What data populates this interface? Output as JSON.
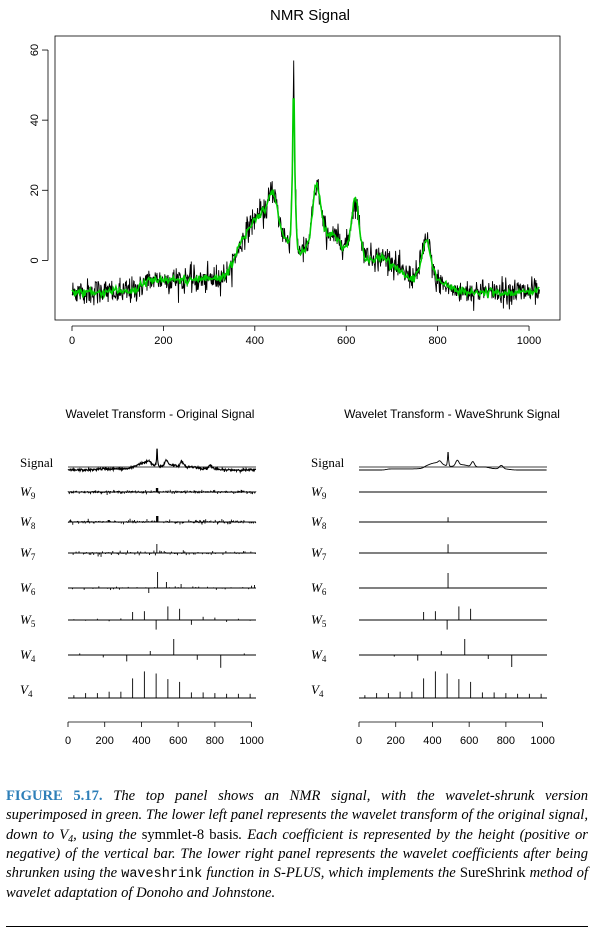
{
  "colors": {
    "signal": "#000000",
    "shrunk": "#00cc00",
    "caption_label": "#2e7fb8"
  },
  "top_panel": {
    "title": "NMR Signal",
    "x_ticks": [
      "0",
      "200",
      "400",
      "600",
      "800",
      "1000"
    ],
    "y_ticks": [
      "0",
      "20",
      "40",
      "60"
    ]
  },
  "lower_left": {
    "title": "Wavelet Transform - Original Signal",
    "row_labels": [
      "Signal",
      "W",
      "W",
      "W",
      "W",
      "W",
      "W",
      "V"
    ],
    "row_subscripts": [
      "",
      "9",
      "8",
      "7",
      "6",
      "5",
      "4",
      "4"
    ],
    "x_ticks": [
      "0",
      "200",
      "400",
      "600",
      "800",
      "1000"
    ]
  },
  "lower_right": {
    "title": "Wavelet Transform - WaveShrunk Signal",
    "row_labels": [
      "Signal",
      "W",
      "W",
      "W",
      "W",
      "W",
      "W",
      "V"
    ],
    "row_subscripts": [
      "",
      "9",
      "8",
      "7",
      "6",
      "5",
      "4",
      "4"
    ],
    "x_ticks": [
      "0",
      "200",
      "400",
      "600",
      "800",
      "1000"
    ]
  },
  "chart_data": [
    {
      "type": "line",
      "title": "NMR Signal",
      "xlabel": "",
      "ylabel": "",
      "xlim": [
        0,
        1024
      ],
      "ylim": [
        -17,
        64
      ],
      "series": [
        {
          "name": "NMR signal",
          "color": "#000000",
          "description": "noisy NMR spectrum, baseline near -9, peaks near x=430 (~30), x=485 (~57), x=535 (~25), x=620 (~22), x=775 (~7)"
        },
        {
          "name": "wavelet-shrunk version",
          "color": "#00cc00",
          "description": "smoothed estimate following the same peaks"
        }
      ],
      "peaks": [
        {
          "x": 430,
          "y": 30
        },
        {
          "x": 485,
          "y": 57
        },
        {
          "x": 535,
          "y": 25
        },
        {
          "x": 620,
          "y": 22
        },
        {
          "x": 775,
          "y": 7
        }
      ],
      "baseline": -9
    },
    {
      "type": "bar",
      "title": "Wavelet Transform - Original Signal",
      "rows": [
        "Signal",
        "W9",
        "W8",
        "W7",
        "W6",
        "W5",
        "W4",
        "V4"
      ],
      "xlim": [
        0,
        1024
      ],
      "V4": {
        "x": [
          32,
          96,
          160,
          224,
          288,
          352,
          416,
          480,
          544,
          608,
          672,
          736,
          800,
          864,
          928,
          992
        ],
        "h": [
          -0.7,
          -0.55,
          -0.55,
          -0.45,
          -0.45,
          0.5,
          1.0,
          0.85,
          0.45,
          0.25,
          -0.5,
          -0.5,
          -0.55,
          -0.6,
          -0.6,
          -0.6
        ]
      },
      "W4": {
        "x": [
          64,
          192,
          320,
          448,
          576,
          704,
          832,
          960
        ],
        "h": [
          0.1,
          -0.15,
          -0.4,
          0.25,
          1.0,
          -0.3,
          -0.8,
          0.1
        ]
      },
      "W5": {
        "x": [
          32,
          96,
          160,
          224,
          288,
          352,
          416,
          480,
          544,
          608,
          672,
          736,
          800,
          864,
          928,
          992
        ],
        "h": [
          0.05,
          -0.05,
          0.08,
          -0.08,
          0.1,
          0.5,
          0.55,
          -0.6,
          0.85,
          0.7,
          -0.3,
          0.2,
          0.15,
          -0.12,
          0.08,
          -0.05
        ]
      },
      "W6_spike": {
        "x": 485,
        "h": 0.8
      }
    },
    {
      "type": "bar",
      "title": "Wavelet Transform - WaveShrunk Signal",
      "rows": [
        "Signal",
        "W9",
        "W8",
        "W7",
        "W6",
        "W5",
        "W4",
        "V4"
      ],
      "xlim": [
        0,
        1024
      ],
      "W9": "all coefficients zero",
      "W8": {
        "x": [
          485
        ],
        "h": [
          0.3
        ]
      },
      "W7": {
        "x": [
          485
        ],
        "h": [
          0.55
        ]
      },
      "W6": {
        "x": [
          485
        ],
        "h": [
          0.75
        ]
      },
      "W5": {
        "x": [
          352,
          416,
          480,
          544,
          608
        ],
        "h": [
          0.5,
          0.55,
          -0.6,
          0.85,
          0.7
        ]
      },
      "W4": {
        "x": [
          192,
          320,
          448,
          576,
          704,
          832
        ],
        "h": [
          -0.1,
          -0.35,
          0.25,
          1.0,
          -0.25,
          -0.75
        ]
      },
      "V4": "same as original V4"
    }
  ],
  "caption": {
    "label": "FIGURE 5.17.",
    "text_1": "The top panel shows an NMR signal, with the wavelet-shrunk version superimposed in green. The lower left panel represents the wavelet transform of the original signal, down to V",
    "sub_1": "4",
    "text_2": ", using the ",
    "roman_1": "symmlet-8 basis",
    "text_3": ". Each coefficient is represented by the height (positive or negative) of the vertical bar. The lower right panel represents the wavelet coefficients after being shrunken using the ",
    "mono_1": "waveshrink",
    "text_4": " function in S-PLUS, which implements the ",
    "roman_2": "SureShrink",
    "text_5": " method of wavelet adaptation of Donoho and Johnstone."
  }
}
